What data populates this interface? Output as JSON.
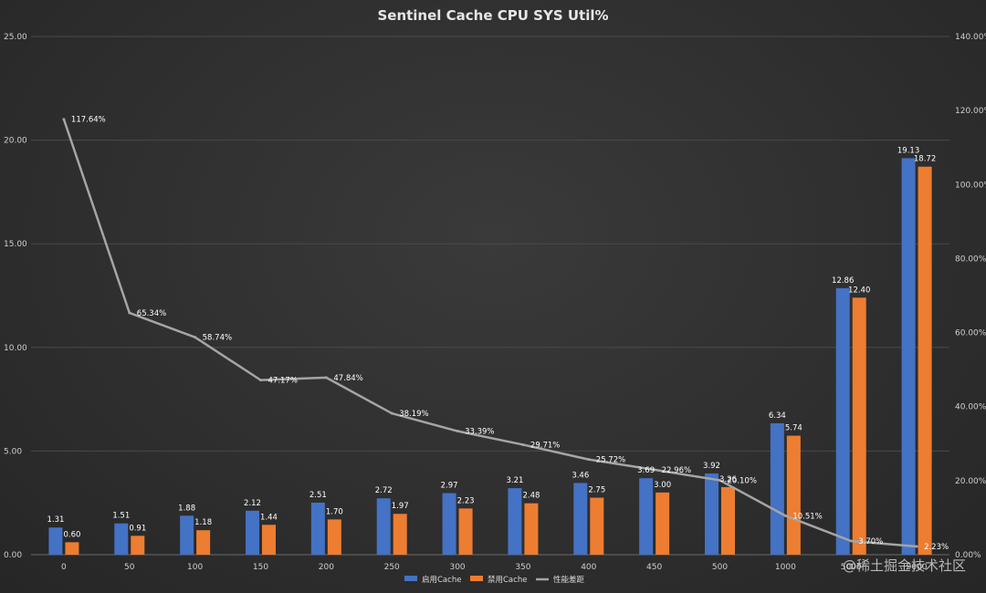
{
  "watermark": "@稀土掘金技术社区",
  "chart_data": {
    "type": "bar",
    "title": "Sentinel Cache CPU SYS Util%",
    "categories": [
      "0",
      "50",
      "100",
      "150",
      "200",
      "250",
      "300",
      "350",
      "400",
      "450",
      "500",
      "1000",
      "5000",
      "9000"
    ],
    "series": [
      {
        "name": "启用Cache",
        "type": "bar",
        "axis": "left",
        "color": "#4472c4",
        "values": [
          1.31,
          1.51,
          1.88,
          2.12,
          2.51,
          2.72,
          2.97,
          3.21,
          3.46,
          3.69,
          3.92,
          6.34,
          12.86,
          19.13
        ],
        "labels": [
          "1.31",
          "1.51",
          "1.88",
          "2.12",
          "2.51",
          "2.72",
          "2.97",
          "3.21",
          "3.46",
          "3.69",
          "3.92",
          "6.34",
          "12.86",
          "19.13"
        ]
      },
      {
        "name": "禁用Cache",
        "type": "bar",
        "axis": "left",
        "color": "#ed7d31",
        "values": [
          0.6,
          0.91,
          1.18,
          1.44,
          1.7,
          1.97,
          2.23,
          2.48,
          2.75,
          3.0,
          3.26,
          5.74,
          12.4,
          18.72
        ],
        "labels": [
          "0.60",
          "0.91",
          "1.18",
          "1.44",
          "1.70",
          "1.97",
          "2.23",
          "2.48",
          "2.75",
          "3.00",
          "3.26",
          "5.74",
          "12.40",
          "18.72"
        ]
      },
      {
        "name": "性能差距",
        "type": "line",
        "axis": "right",
        "color": "#a5a5a5",
        "values": [
          117.64,
          65.34,
          58.74,
          47.17,
          47.84,
          38.19,
          33.39,
          29.71,
          25.72,
          22.96,
          20.1,
          10.51,
          3.7,
          2.23
        ],
        "labels": [
          "117.64%",
          "65.34%",
          "58.74%",
          "47.17%",
          "47.84%",
          "38.19%",
          "33.39%",
          "29.71%",
          "25.72%",
          "22.96%",
          "20.10%",
          "10.51%",
          "3.70%",
          "2.23%"
        ]
      }
    ],
    "y_left": {
      "min": 0,
      "max": 25,
      "ticks": [
        "0.00",
        "5.00",
        "10.00",
        "15.00",
        "20.00",
        "25.00"
      ],
      "tick_values": [
        0,
        5,
        10,
        15,
        20,
        25
      ]
    },
    "y_right": {
      "min": 0,
      "max": 140,
      "ticks": [
        "0.00%",
        "20.00%",
        "40.00%",
        "60.00%",
        "80.00%",
        "100.00%",
        "120.00%",
        "140.00%"
      ],
      "tick_values": [
        0,
        20,
        40,
        60,
        80,
        100,
        120,
        140
      ]
    },
    "grid": true,
    "legend_position": "bottom"
  }
}
